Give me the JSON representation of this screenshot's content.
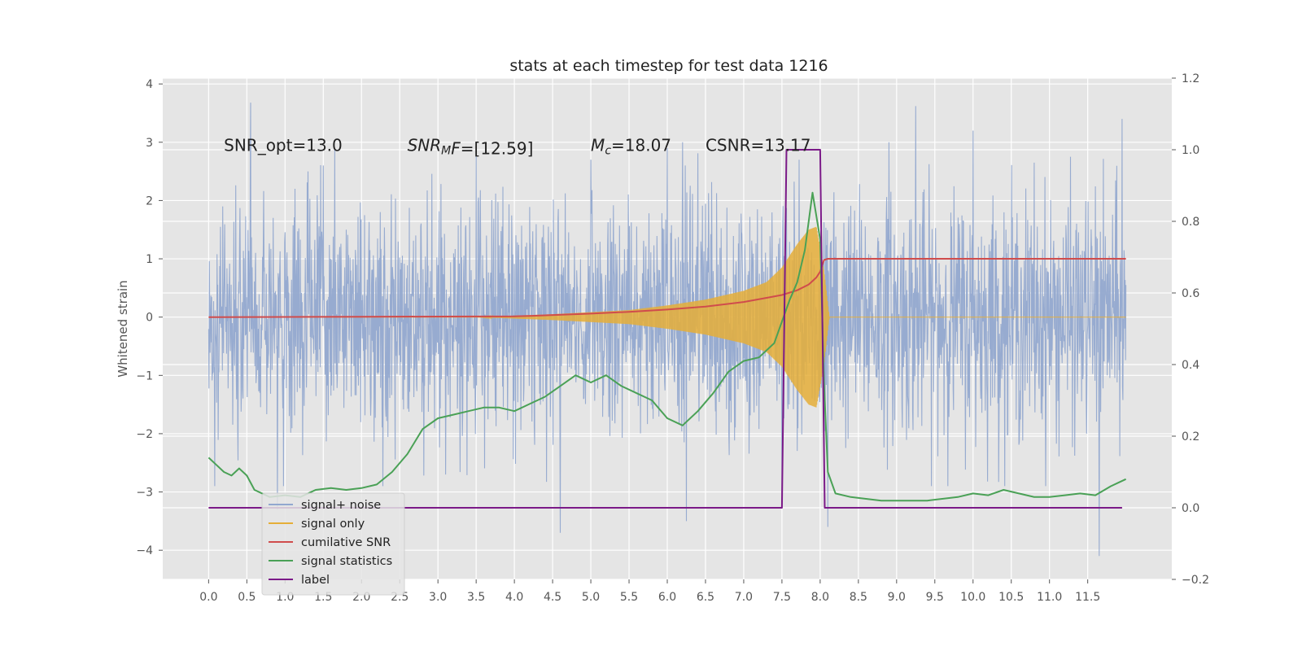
{
  "chart_data": {
    "type": "line",
    "title": "stats at each timestep for test data 1216",
    "ylabel": "Whitened strain",
    "xlabel": "",
    "xlim": [
      -0.6,
      12.6
    ],
    "ylim": [
      -4.5,
      4.1
    ],
    "y2lim": [
      -0.2,
      1.2
    ],
    "x_ticks": [
      0.0,
      0.5,
      1.0,
      1.5,
      2.0,
      2.5,
      3.0,
      3.5,
      4.0,
      4.5,
      5.0,
      5.5,
      6.0,
      6.5,
      7.0,
      7.5,
      8.0,
      8.5,
      9.0,
      9.5,
      10.0,
      10.5,
      11.0,
      11.5
    ],
    "x_tick_labels": [
      "0.0",
      "0.5",
      "1.0",
      "1.5",
      "2.0",
      "2.5",
      "3.0",
      "3.5",
      "4.0",
      "4.5",
      "5.0",
      "5.5",
      "6.0",
      "6.5",
      "7.0",
      "7.5",
      "8.0",
      "8.5",
      "9.0",
      "9.5",
      "10.0",
      "10.5",
      "11.0",
      "11.5"
    ],
    "y_ticks": [
      4,
      3,
      2,
      1,
      0,
      -1,
      -2,
      -3,
      -4
    ],
    "y_tick_labels": [
      "4",
      "3",
      "2",
      "1",
      "0",
      "−1",
      "−2",
      "−3",
      "−4"
    ],
    "y2_ticks": [
      1.2,
      1.0,
      0.8,
      0.6,
      0.4,
      0.2,
      0.0,
      -0.2
    ],
    "y2_tick_labels": [
      "1.2",
      "1.0",
      "0.8",
      "0.6",
      "0.4",
      "0.2",
      "0.0",
      "−0.2"
    ],
    "grid": true,
    "legend_placement": "lower-left",
    "annotations": [
      {
        "text": "SNR_opt=13.0",
        "x": 0.2,
        "y": 2.85
      },
      {
        "text": "SNR_MF=[12.59]",
        "math": true,
        "base": "SNR",
        "sub": "M",
        "rest": "F=[12.59]",
        "x": 2.6,
        "y": 2.85
      },
      {
        "text": "M_c=18.07",
        "math": true,
        "base": "M",
        "sub": "c",
        "rest": "=18.07",
        "x": 5.0,
        "y": 2.85
      },
      {
        "text": "CSNR=13.17",
        "x": 6.5,
        "y": 2.85
      }
    ],
    "series": [
      {
        "name": "signal+ noise",
        "color": "#92a8cf",
        "axis": "left",
        "description_envelope": "noise roughly uniform, |y| mostly below 2.5 with spikes up to about 3.7 and down to -4.1",
        "x_range": [
          0.0,
          12.0
        ],
        "spikes": [
          [
            0.55,
            3.68
          ],
          [
            8.9,
            3.0
          ],
          [
            9.25,
            3.62
          ],
          [
            10.0,
            3.2
          ],
          [
            11.95,
            3.4
          ],
          [
            1.3,
            2.5
          ],
          [
            1.5,
            2.6
          ],
          [
            3.5,
            2.85
          ],
          [
            5.0,
            2.7
          ],
          [
            6.0,
            2.9
          ],
          [
            6.2,
            3.0
          ],
          [
            10.8,
            2.65
          ],
          [
            4.6,
            -3.7
          ],
          [
            6.25,
            -3.5
          ],
          [
            7.5,
            -3.2
          ],
          [
            8.1,
            -3.6
          ],
          [
            11.65,
            -4.1
          ],
          [
            3.1,
            -2.7
          ],
          [
            0.9,
            -3.3
          ]
        ]
      },
      {
        "name": "signal only",
        "color": "#e5ae38",
        "axis": "left",
        "envelope": {
          "x": [
            3.5,
            4.5,
            5.5,
            6.0,
            6.5,
            7.0,
            7.3,
            7.5,
            7.7,
            7.85,
            7.95,
            8.05,
            8.12,
            12.0
          ],
          "amp": [
            0.0,
            0.05,
            0.12,
            0.2,
            0.3,
            0.45,
            0.6,
            0.85,
            1.25,
            1.5,
            1.55,
            0.8,
            0.0,
            0.0
          ]
        }
      },
      {
        "name": "cumilative SNR",
        "color": "#d04c4c",
        "axis": "left",
        "x": [
          0.0,
          1.0,
          2.0,
          3.0,
          4.0,
          4.2,
          5.0,
          5.5,
          6.0,
          6.5,
          7.0,
          7.3,
          7.5,
          7.7,
          7.85,
          7.95,
          8.0,
          8.05,
          8.1,
          9.0,
          10.0,
          11.0,
          12.0
        ],
        "values": [
          0.0,
          0.003,
          0.006,
          0.01,
          0.013,
          0.02,
          0.06,
          0.09,
          0.13,
          0.18,
          0.26,
          0.33,
          0.38,
          0.46,
          0.56,
          0.68,
          0.78,
          0.98,
          1.0,
          1.0,
          1.0,
          1.0,
          1.0
        ]
      },
      {
        "name": "signal statistics",
        "color": "#4aa156",
        "axis": "right",
        "x": [
          0.0,
          0.1,
          0.2,
          0.3,
          0.4,
          0.5,
          0.6,
          0.8,
          1.0,
          1.2,
          1.4,
          1.6,
          1.8,
          2.0,
          2.2,
          2.4,
          2.6,
          2.8,
          3.0,
          3.2,
          3.4,
          3.6,
          3.8,
          4.0,
          4.2,
          4.4,
          4.6,
          4.8,
          5.0,
          5.2,
          5.4,
          5.6,
          5.8,
          6.0,
          6.2,
          6.4,
          6.6,
          6.8,
          7.0,
          7.2,
          7.4,
          7.5,
          7.6,
          7.7,
          7.8,
          7.9,
          8.0,
          8.05,
          8.1,
          8.2,
          8.4,
          8.6,
          8.8,
          9.0,
          9.4,
          9.8,
          10.0,
          10.2,
          10.4,
          10.6,
          10.8,
          11.0,
          11.2,
          11.4,
          11.6,
          11.8,
          11.9,
          12.0
        ],
        "values": [
          0.14,
          0.12,
          0.1,
          0.09,
          0.11,
          0.09,
          0.05,
          0.03,
          0.035,
          0.03,
          0.05,
          0.055,
          0.05,
          0.055,
          0.065,
          0.1,
          0.15,
          0.22,
          0.25,
          0.26,
          0.27,
          0.28,
          0.28,
          0.27,
          0.29,
          0.31,
          0.34,
          0.37,
          0.35,
          0.37,
          0.34,
          0.32,
          0.3,
          0.25,
          0.23,
          0.27,
          0.32,
          0.38,
          0.41,
          0.42,
          0.46,
          0.52,
          0.58,
          0.63,
          0.72,
          0.88,
          0.75,
          0.35,
          0.1,
          0.04,
          0.03,
          0.025,
          0.02,
          0.02,
          0.02,
          0.03,
          0.04,
          0.035,
          0.05,
          0.04,
          0.03,
          0.03,
          0.035,
          0.04,
          0.035,
          0.06,
          0.07,
          0.08
        ]
      },
      {
        "name": "label",
        "color": "#7b1a88",
        "axis": "right",
        "x": [
          0.0,
          7.5,
          7.56,
          8.0,
          8.06,
          11.95
        ],
        "values": [
          0.0,
          0.0,
          1.0,
          1.0,
          0.0,
          0.0
        ]
      }
    ]
  }
}
